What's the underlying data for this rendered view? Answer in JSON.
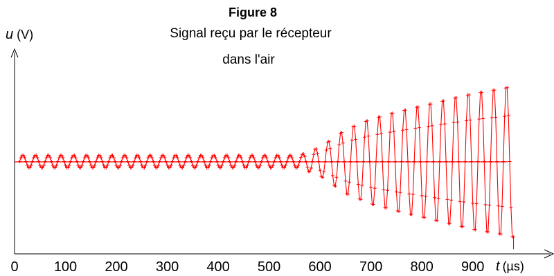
{
  "chart_data": {
    "type": "line",
    "title": "Figure 8",
    "subtitle_lines": [
      "Signal reçu par le récepteur",
      "dans l'air"
    ],
    "xlabel": {
      "symbol": "t",
      "unit": "(µs)"
    },
    "ylabel": {
      "symbol": "u",
      "unit": "(V)"
    },
    "x_ticks": [
      "0",
      "100",
      "200",
      "300",
      "400",
      "500",
      "600",
      "700",
      "800",
      "900"
    ],
    "xlim": [
      0,
      1050
    ],
    "ylim": [
      -1.0,
      1.0
    ],
    "grid": false,
    "series_color": "#ff0000",
    "signal_model": {
      "period_us": 25,
      "start_us": 10,
      "end_us": 980,
      "noise_amplitude": 0.07,
      "envelope": [
        {
          "t": 10,
          "a": 0.07
        },
        {
          "t": 560,
          "a": 0.07
        },
        {
          "t": 600,
          "a": 0.16
        },
        {
          "t": 650,
          "a": 0.36
        },
        {
          "t": 700,
          "a": 0.48
        },
        {
          "t": 750,
          "a": 0.56
        },
        {
          "t": 800,
          "a": 0.63
        },
        {
          "t": 850,
          "a": 0.7
        },
        {
          "t": 900,
          "a": 0.77
        },
        {
          "t": 960,
          "a": 0.83
        },
        {
          "t": 980,
          "a": 0.86
        }
      ]
    }
  }
}
